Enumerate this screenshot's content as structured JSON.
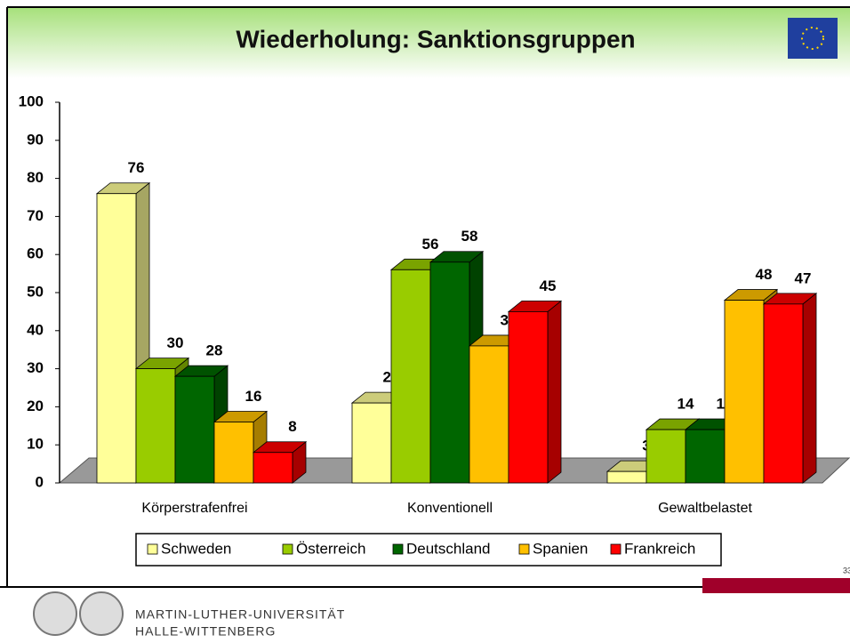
{
  "chart_data": {
    "type": "bar3d",
    "title": "Wiederholung: Sanktionsgruppen",
    "categories": [
      "Körperstrafenfrei",
      "Konventionell",
      "Gewaltbelastet"
    ],
    "series": [
      {
        "name": "Schweden",
        "color": "#ffff99",
        "values": [
          76,
          21,
          3
        ]
      },
      {
        "name": "Österreich",
        "color": "#99cc00",
        "values": [
          30,
          56,
          14
        ]
      },
      {
        "name": "Deutschland",
        "color": "#006600",
        "values": [
          28,
          58,
          14
        ]
      },
      {
        "name": "Spanien",
        "color": "#ffc000",
        "values": [
          16,
          36,
          48
        ]
      },
      {
        "name": "Frankreich",
        "color": "#ff0000",
        "values": [
          8,
          45,
          47
        ]
      }
    ],
    "ylim": [
      0,
      100
    ],
    "yticks": [
      0,
      10,
      20,
      30,
      40,
      50,
      60,
      70,
      80,
      90,
      100
    ]
  },
  "footer": [
    "MARTIN-LUTHER-UNIVERSITÄT",
    "HALLE-WITTENBERG"
  ],
  "page_number": "33"
}
